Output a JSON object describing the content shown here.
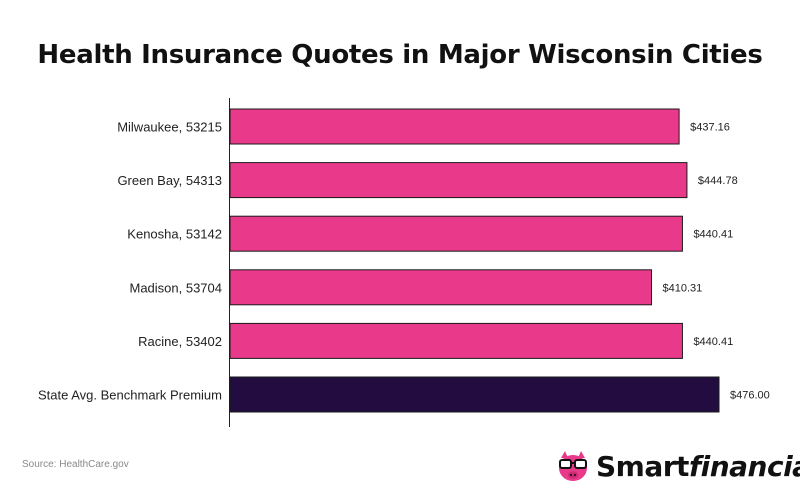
{
  "chart_data": {
    "type": "bar",
    "orientation": "horizontal",
    "title": "Health Insurance Quotes in Major Wisconsin Cities",
    "categories": [
      "Milwaukee, 53215",
      "Green Bay, 54313",
      "Kenosha, 53142",
      "Madison, 53704",
      "Racine, 53402",
      "State Avg. Benchmark Premium"
    ],
    "values": [
      437.16,
      444.78,
      440.41,
      410.31,
      440.41,
      476.0
    ],
    "value_labels": [
      "$437.16",
      "$444.78",
      "$440.41",
      "$410.31",
      "$440.41",
      "$476.00"
    ],
    "xlim": [
      0,
      476
    ],
    "colors": [
      "#e8398a",
      "#e8398a",
      "#e8398a",
      "#e8398a",
      "#e8398a",
      "#230c40"
    ],
    "grid": false,
    "legend": "none"
  },
  "footer": {
    "source": "Source: HealthCare.gov",
    "logo_part1": "Smart",
    "logo_part2": "financial",
    "logo_icon": "piggy-bank-glasses-icon"
  }
}
